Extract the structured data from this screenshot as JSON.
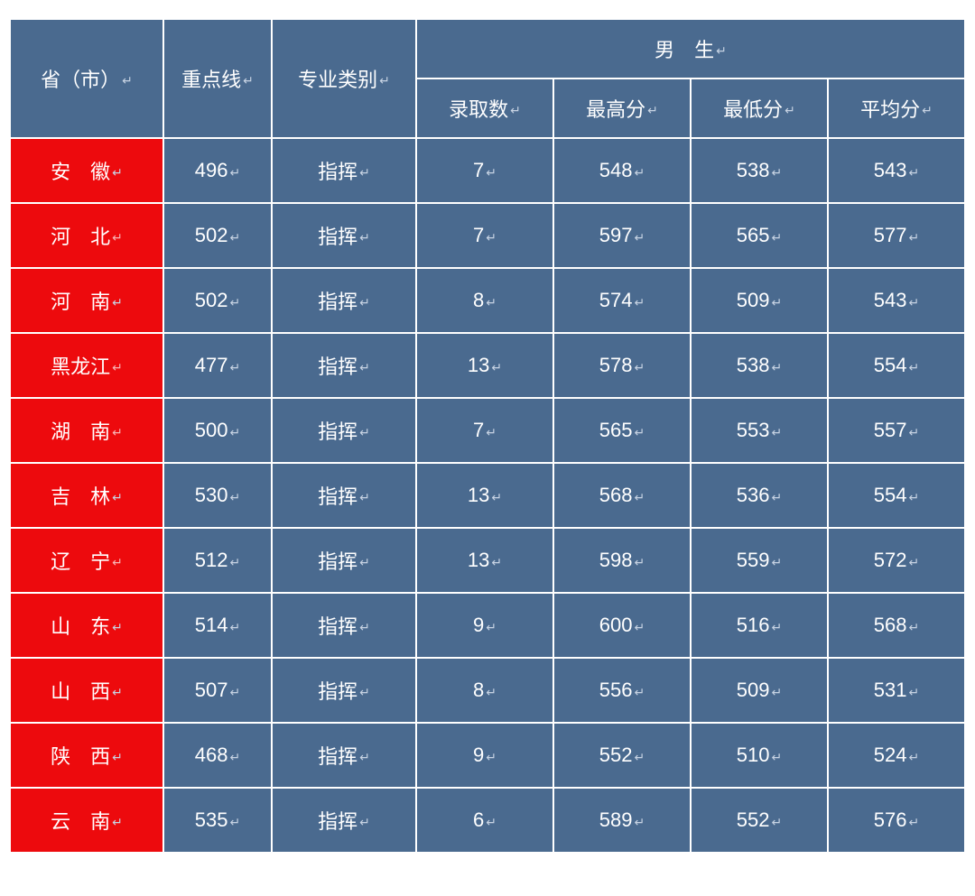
{
  "colors": {
    "header_bg": "#4a6a8f",
    "data_bg": "#4a6a8f",
    "province_bg": "#ed0a0d",
    "border": "#ffffff",
    "text": "#ffffff",
    "return_mark": "#c7d3e3",
    "return_mark_red": "#f7b3b4"
  },
  "return_mark": "↵",
  "header": {
    "province": "省（市）",
    "cutoff": "重点线",
    "category": "专业类别",
    "group": "男　生",
    "sub": {
      "admitted": "录取数",
      "max": "最高分",
      "min": "最低分",
      "avg": "平均分"
    }
  },
  "rows": [
    {
      "province": "安　徽",
      "province_ret_red": false,
      "cutoff": "496",
      "category": "指挥",
      "admitted": "7",
      "max": "548",
      "min": "538",
      "avg": "543"
    },
    {
      "province": "河　北",
      "province_ret_red": true,
      "cutoff": "502",
      "category": "指挥",
      "admitted": "7",
      "max": "597",
      "min": "565",
      "avg": "577"
    },
    {
      "province": "河　南",
      "province_ret_red": false,
      "cutoff": "502",
      "category": "指挥",
      "admitted": "8",
      "max": "574",
      "min": "509",
      "avg": "543"
    },
    {
      "province": "黑龙江",
      "province_ret_red": true,
      "cutoff": "477",
      "category": "指挥",
      "admitted": "13",
      "max": "578",
      "min": "538",
      "avg": "554"
    },
    {
      "province": "湖　南",
      "province_ret_red": true,
      "cutoff": "500",
      "category": "指挥",
      "admitted": "7",
      "max": "565",
      "min": "553",
      "avg": "557"
    },
    {
      "province": "吉　林",
      "province_ret_red": false,
      "cutoff": "530",
      "category": "指挥",
      "admitted": "13",
      "max": "568",
      "min": "536",
      "avg": "554"
    },
    {
      "province": "辽　宁",
      "province_ret_red": true,
      "cutoff": "512",
      "category": "指挥",
      "admitted": "13",
      "max": "598",
      "min": "559",
      "avg": "572"
    },
    {
      "province": "山　东",
      "province_ret_red": false,
      "cutoff": "514",
      "category": "指挥",
      "admitted": "9",
      "max": "600",
      "min": "516",
      "avg": "568"
    },
    {
      "province": "山　西",
      "province_ret_red": false,
      "cutoff": "507",
      "category": "指挥",
      "admitted": "8",
      "max": "556",
      "min": "509",
      "avg": "531"
    },
    {
      "province": "陕　西",
      "province_ret_red": false,
      "cutoff": "468",
      "category": "指挥",
      "admitted": "9",
      "max": "552",
      "min": "510",
      "avg": "524"
    },
    {
      "province": "云　南",
      "province_ret_red": false,
      "cutoff": "535",
      "category": "指挥",
      "admitted": "6",
      "max": "589",
      "min": "552",
      "avg": "576"
    }
  ]
}
